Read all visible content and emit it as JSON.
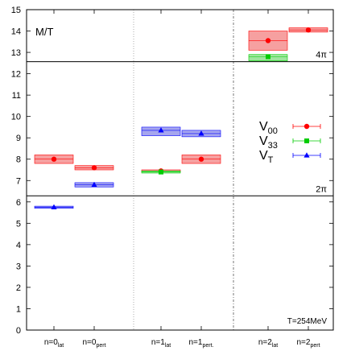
{
  "chart_data": {
    "type": "scatter",
    "title": "",
    "ylabel": "M/T",
    "ylim": [
      0,
      15
    ],
    "yticks": [
      0,
      1,
      2,
      3,
      4,
      5,
      6,
      7,
      8,
      9,
      10,
      11,
      12,
      13,
      14,
      15
    ],
    "grid": false,
    "legend_position": "right",
    "categories": [
      {
        "base": "n=0",
        "sub": "lat"
      },
      {
        "base": "n=0",
        "sub": "pert"
      },
      {
        "base": "n=1",
        "sub": "lat"
      },
      {
        "base": "n=1",
        "sub": "pert."
      },
      {
        "base": "n=2",
        "sub": "lat"
      },
      {
        "base": "n=2",
        "sub": "pert"
      }
    ],
    "reference_lines": [
      {
        "y": 6.283,
        "label": "2π"
      },
      {
        "y": 12.566,
        "label": "4π"
      }
    ],
    "series": [
      {
        "name": "V00",
        "name_base": "V",
        "name_sub": "00",
        "color": "#ff0000",
        "fill": "#f6a0a0",
        "marker": "circle",
        "points": [
          {
            "cat": 0,
            "y": 8.0,
            "low": 7.8,
            "high": 8.2
          },
          {
            "cat": 1,
            "y": 7.6,
            "low": 7.5,
            "high": 7.7
          },
          {
            "cat": 2,
            "y": 7.45,
            "low": 7.4,
            "high": 7.5
          },
          {
            "cat": 3,
            "y": 8.0,
            "low": 7.8,
            "high": 8.2
          },
          {
            "cat": 4,
            "y": 13.55,
            "low": 13.1,
            "high": 14.0
          },
          {
            "cat": 5,
            "y": 14.05,
            "low": 13.95,
            "high": 14.15
          }
        ]
      },
      {
        "name": "V33",
        "name_base": "V",
        "name_sub": "33",
        "color": "#00cc00",
        "fill": "#9ee69e",
        "marker": "square",
        "points": [
          {
            "cat": 2,
            "y": 7.4,
            "low": 7.35,
            "high": 7.45
          },
          {
            "cat": 4,
            "y": 12.8,
            "low": 12.6,
            "high": 12.9
          }
        ]
      },
      {
        "name": "VT",
        "name_base": "V",
        "name_sub": "T",
        "color": "#0000ff",
        "fill": "#a6a6ee",
        "marker": "triangle",
        "points": [
          {
            "cat": 0,
            "y": 5.75,
            "low": 5.7,
            "high": 5.8
          },
          {
            "cat": 1,
            "y": 6.8,
            "low": 6.7,
            "high": 6.9
          },
          {
            "cat": 2,
            "y": 9.35,
            "low": 9.1,
            "high": 9.5
          },
          {
            "cat": 3,
            "y": 9.2,
            "low": 9.05,
            "high": 9.35
          }
        ]
      }
    ],
    "annotation": "T=254MeV"
  }
}
